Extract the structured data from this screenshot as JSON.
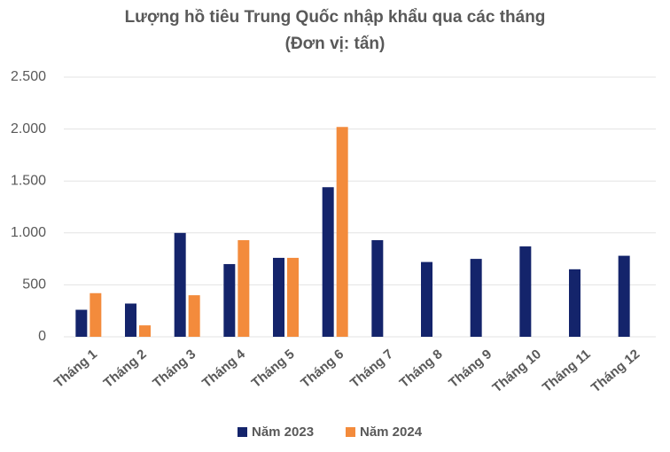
{
  "chart_data": {
    "type": "bar",
    "title": "Lượng hồ tiêu Trung Quốc nhập khẩu qua các tháng",
    "subtitle": "(Đơn vị: tấn)",
    "categories": [
      "Tháng 1",
      "Tháng 2",
      "Tháng 3",
      "Tháng 4",
      "Tháng 5",
      "Tháng 6",
      "Tháng 7",
      "Tháng 8",
      "Tháng 9",
      "Tháng 10",
      "Tháng 11",
      "Tháng 12"
    ],
    "series": [
      {
        "name": "Năm 2023",
        "color": "#14246b",
        "values": [
          260,
          320,
          1000,
          700,
          760,
          1440,
          930,
          720,
          750,
          870,
          650,
          780
        ]
      },
      {
        "name": "Năm 2024",
        "color": "#f38b3c",
        "values": [
          420,
          110,
          400,
          930,
          760,
          2020,
          null,
          null,
          null,
          null,
          null,
          null
        ]
      }
    ],
    "ylim": [
      0,
      2500
    ],
    "yticks": [
      0,
      500,
      {
        "value": 1000,
        "label": "1.000"
      },
      {
        "value": 1500,
        "label": "1.500"
      },
      {
        "value": 2000,
        "label": "2.000"
      },
      {
        "value": 2500,
        "label": "2.500"
      }
    ],
    "grid": true
  }
}
